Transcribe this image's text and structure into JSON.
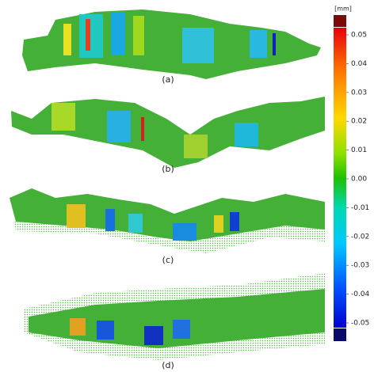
{
  "panels": [
    {
      "label": "(a)"
    },
    {
      "label": "(b)"
    },
    {
      "label": "(c)"
    },
    {
      "label": "(d)"
    }
  ],
  "colorbar": {
    "unit": "[mm]",
    "ticks": [
      "0.05",
      "0.04",
      "0.03",
      "0.02",
      "0.01",
      "0.00",
      "-0.01",
      "-0.02",
      "-0.03",
      "-0.04",
      "-0.05"
    ]
  }
}
